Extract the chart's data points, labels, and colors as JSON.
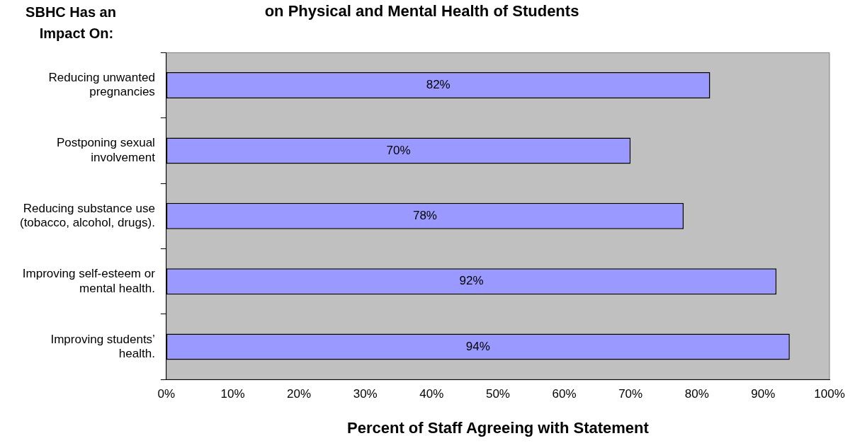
{
  "chart_data": {
    "type": "bar",
    "orientation": "horizontal",
    "title": "on Physical and Mental Health of Students",
    "ylabel": "SBHC Has an Impact On:",
    "xlabel": "Percent of Staff Agreeing with Statement",
    "categories": [
      "Reducing unwanted pregnancies",
      "Postponing sexual involvement",
      "Reducing substance use (tobacco, alcohol, drugs).",
      "Improving self-esteem or mental health.",
      "Improving students’ health."
    ],
    "values": [
      82,
      70,
      78,
      92,
      94
    ],
    "color": "#9999ff",
    "value_labels": [
      "82%",
      "70%",
      "78%",
      "92%",
      "94%"
    ],
    "xlim": [
      0,
      100
    ],
    "xticks": [
      {
        "value": 0,
        "label": "0%"
      },
      {
        "value": 10,
        "label": "10%"
      },
      {
        "value": 20,
        "label": "20%"
      },
      {
        "value": 30,
        "label": "30%"
      },
      {
        "value": 40,
        "label": "40%"
      },
      {
        "value": 50,
        "label": "50%"
      },
      {
        "value": 60,
        "label": "60%"
      },
      {
        "value": 70,
        "label": "70%"
      },
      {
        "value": 80,
        "label": "80%"
      },
      {
        "value": 90,
        "label": "90%"
      },
      {
        "value": 100,
        "label": "100%"
      }
    ],
    "grid": false,
    "legend": false
  }
}
